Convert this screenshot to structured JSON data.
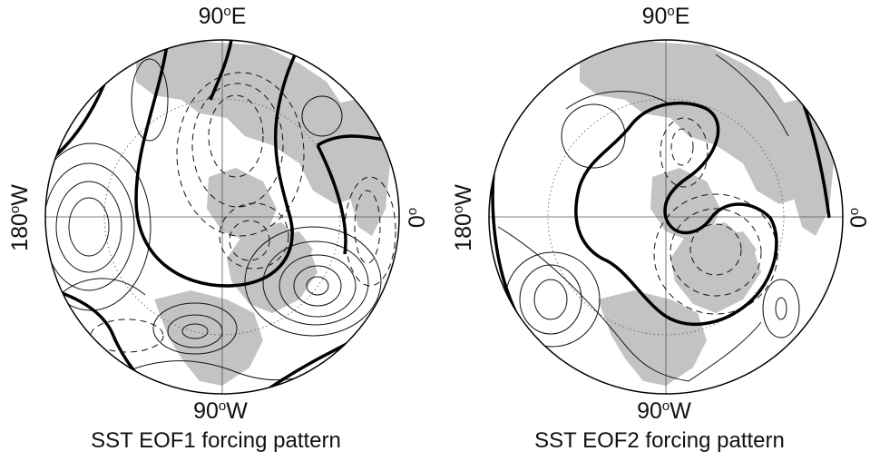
{
  "panels": [
    {
      "caption": "SST EOF1 forcing pattern",
      "labels": {
        "top": "90",
        "top_unit": "E",
        "bottom": "90",
        "bottom_unit": "W",
        "left": "180",
        "left_unit": "W",
        "right": "0"
      }
    },
    {
      "caption": "SST EOF2 forcing pattern",
      "labels": {
        "top": "90",
        "top_unit": "E",
        "bottom": "90",
        "bottom_unit": "W",
        "left": "180",
        "left_unit": "W",
        "right": "0"
      }
    }
  ],
  "degree_symbol": "o",
  "colors": {
    "land": "#c3c3c3",
    "contour": "#111111",
    "background": "#ffffff"
  }
}
